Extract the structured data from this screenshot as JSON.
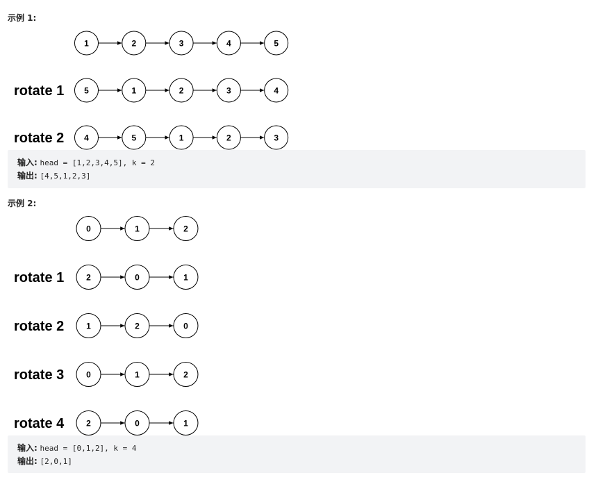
{
  "examples": [
    {
      "title": "示例 1:",
      "rows": [
        {
          "label": "",
          "nodes": [
            "1",
            "2",
            "3",
            "4",
            "5"
          ]
        },
        {
          "label": "rotate 1",
          "nodes": [
            "5",
            "1",
            "2",
            "3",
            "4"
          ]
        },
        {
          "label": "rotate 2",
          "nodes": [
            "4",
            "5",
            "1",
            "2",
            "3"
          ]
        }
      ],
      "input_label": "输入:",
      "input_value": "head = [1,2,3,4,5], k = 2",
      "output_label": "输出:",
      "output_value": "[4,5,1,2,3]"
    },
    {
      "title": "示例 2:",
      "rows": [
        {
          "label": "",
          "nodes": [
            "0",
            "1",
            "2"
          ]
        },
        {
          "label": "rotate 1",
          "nodes": [
            "2",
            "0",
            "1"
          ]
        },
        {
          "label": "rotate 2",
          "nodes": [
            "1",
            "2",
            "0"
          ]
        },
        {
          "label": "rotate 3",
          "nodes": [
            "0",
            "1",
            "2"
          ]
        },
        {
          "label": "rotate 4",
          "nodes": [
            "2",
            "0",
            "1"
          ]
        }
      ],
      "input_label": "输入:",
      "input_value": "head = [0,1,2], k = 4",
      "output_label": "输出:",
      "output_value": "[2,0,1]"
    }
  ]
}
